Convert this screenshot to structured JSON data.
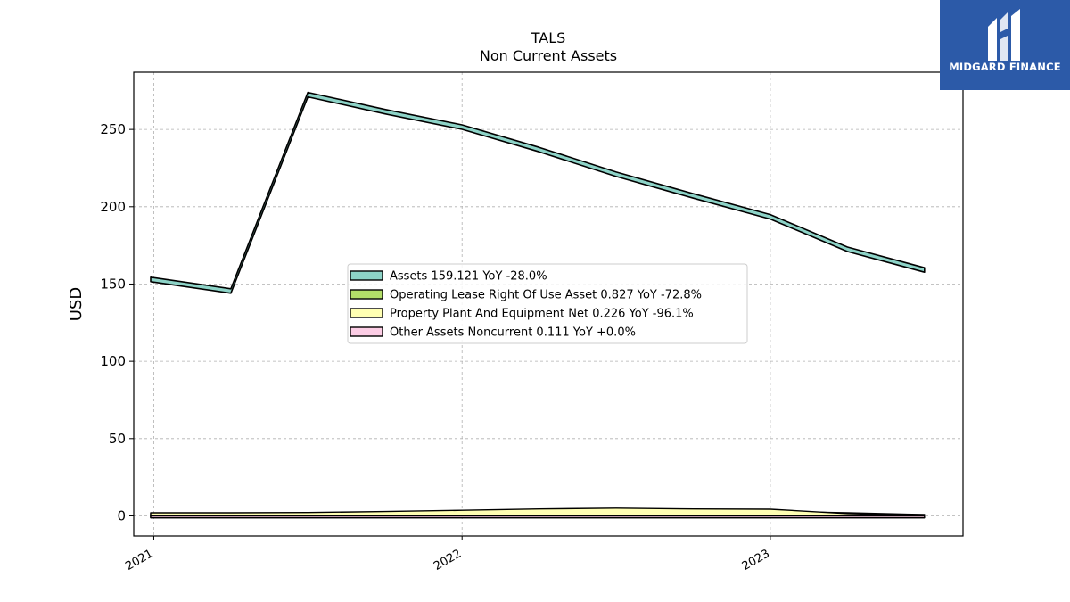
{
  "brand": {
    "name": "MIDGARD FINANCE",
    "color": "#2c5aa8"
  },
  "chart_data": {
    "type": "area",
    "title": "TALS",
    "subtitle": "Non Current  Assets",
    "ylabel": "USD",
    "xlabel": "",
    "ylim": [
      -13,
      287
    ],
    "xlim": [
      2020.935,
      2023.625
    ],
    "yticks": [
      0,
      50,
      100,
      150,
      200,
      250
    ],
    "xticks": [
      {
        "value": 2021.0,
        "label": "2021"
      },
      {
        "value": 2022.0,
        "label": "2022"
      },
      {
        "value": 2023.0,
        "label": "2023"
      }
    ],
    "grid": true,
    "legend_position": "center",
    "x": [
      2020.99,
      2021.25,
      2021.5,
      2021.75,
      2022.0,
      2022.25,
      2022.5,
      2022.75,
      2023.0,
      2023.25,
      2023.5
    ],
    "series": [
      {
        "name": "Assets",
        "legend": "Assets  159.121 YoY -28.0%",
        "color": "#8dd3c7",
        "values": [
          153.0,
          145.5,
          272.5,
          261.5,
          251.5,
          237.0,
          221.0,
          207.0,
          193.5,
          172.5,
          159.1
        ]
      },
      {
        "name": "Operating Lease Right Of Use Asset",
        "legend": "Operating Lease Right Of Use Asset  0.827 YoY -72.8%",
        "color": "#b3de69",
        "values": [
          1.6,
          1.6,
          1.6,
          1.6,
          3.0,
          3.0,
          3.0,
          3.0,
          3.0,
          2.0,
          0.83
        ]
      },
      {
        "name": "Property Plant And Equipment Net",
        "legend": "Property Plant And Equipment Net  0.226 YoY -96.1%",
        "color": "#ffffb3",
        "values": [
          2.0,
          2.0,
          2.2,
          2.8,
          3.6,
          4.5,
          5.0,
          4.5,
          4.3,
          1.5,
          0.23
        ]
      },
      {
        "name": "Other Assets Noncurrent",
        "legend": "Other Assets Noncurrent  0.111 YoY +0.0%",
        "color": "#fccde5",
        "values": [
          0.11,
          0.11,
          0.11,
          0.11,
          0.11,
          0.11,
          0.11,
          0.11,
          0.11,
          0.11,
          0.111
        ]
      }
    ]
  }
}
